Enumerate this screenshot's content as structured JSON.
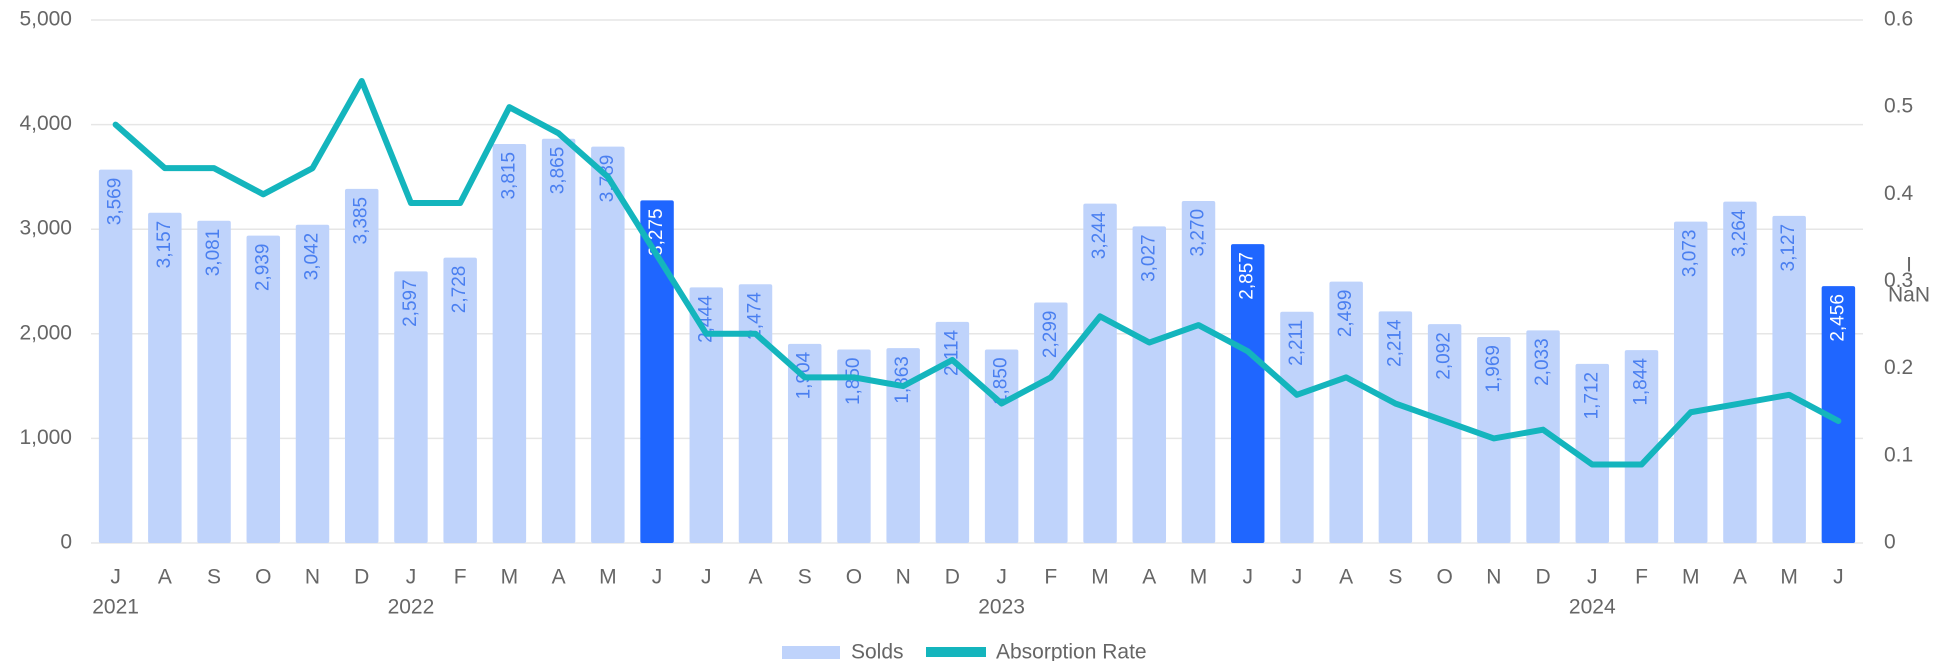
{
  "chart_data": {
    "type": "bar_line",
    "categories": [
      "J",
      "A",
      "S",
      "O",
      "N",
      "D",
      "J",
      "F",
      "M",
      "A",
      "M",
      "J",
      "J",
      "A",
      "S",
      "O",
      "N",
      "D",
      "J",
      "F",
      "M",
      "A",
      "M",
      "J",
      "J",
      "A",
      "S",
      "O",
      "N",
      "D",
      "J",
      "F",
      "M",
      "A",
      "M",
      "J"
    ],
    "years": [
      "2021",
      null,
      null,
      null,
      null,
      null,
      "2022",
      null,
      null,
      null,
      null,
      null,
      null,
      null,
      null,
      null,
      null,
      null,
      "2023",
      null,
      null,
      null,
      null,
      null,
      null,
      null,
      null,
      null,
      null,
      null,
      "2024",
      null,
      null,
      null,
      null,
      null
    ],
    "series": [
      {
        "name": "Solds",
        "type": "bar",
        "color": "#bfd3fb",
        "colors": [
          "#bfd3fb",
          "#bfd3fb",
          "#bfd3fb",
          "#bfd3fb",
          "#bfd3fb",
          "#bfd3fb",
          "#bfd3fb",
          "#bfd3fb",
          "#bfd3fb",
          "#bfd3fb",
          "#bfd3fb",
          "#1f66ff",
          "#bfd3fb",
          "#bfd3fb",
          "#bfd3fb",
          "#bfd3fb",
          "#bfd3fb",
          "#bfd3fb",
          "#bfd3fb",
          "#bfd3fb",
          "#bfd3fb",
          "#bfd3fb",
          "#bfd3fb",
          "#1f66ff",
          "#bfd3fb",
          "#bfd3fb",
          "#bfd3fb",
          "#bfd3fb",
          "#bfd3fb",
          "#bfd3fb",
          "#bfd3fb",
          "#bfd3fb",
          "#bfd3fb",
          "#bfd3fb",
          "#bfd3fb",
          "#1f66ff"
        ],
        "values": [
          3569,
          3157,
          3081,
          2939,
          3042,
          3385,
          2597,
          2728,
          3815,
          3865,
          3789,
          3275,
          2444,
          2474,
          1904,
          1850,
          1863,
          2114,
          1850,
          2299,
          3244,
          3027,
          3270,
          2857,
          2211,
          2499,
          2214,
          2092,
          1969,
          2033,
          1712,
          1844,
          3073,
          3264,
          3127,
          2456
        ],
        "value_labels": [
          "3,569",
          "3,157",
          "3,081",
          "2,939",
          "3,042",
          "3,385",
          "2,597",
          "2,728",
          "3,815",
          "3,865",
          "3,789",
          "3,275",
          "2,444",
          "2,474",
          "1,904",
          "1,850",
          "1,863",
          "2,114",
          "1,850",
          "2,299",
          "3,244",
          "3,027",
          "3,270",
          "2,857",
          "2,211",
          "2,499",
          "2,214",
          "2,092",
          "1,969",
          "2,033",
          "1,712",
          "1,844",
          "3,073",
          "3,264",
          "3,127",
          "2,456"
        ]
      },
      {
        "name": "Absorption Rate",
        "type": "line",
        "axis": "y2",
        "color": "#14b5bd",
        "values": [
          0.48,
          0.43,
          0.43,
          0.4,
          0.43,
          0.53,
          0.39,
          0.39,
          0.5,
          0.47,
          0.42,
          0.33,
          0.24,
          0.24,
          0.19,
          0.19,
          0.18,
          0.21,
          0.16,
          0.19,
          0.26,
          0.23,
          0.25,
          0.22,
          0.17,
          0.19,
          0.16,
          0.14,
          0.12,
          0.13,
          0.09,
          0.09,
          0.15,
          0.16,
          0.17,
          0.14
        ]
      }
    ],
    "ylim": [
      0,
      5000
    ],
    "yticks": [
      0,
      {
        "value": 1000,
        "label": "1,000"
      },
      {
        "value": 2000,
        "label": "2,000"
      },
      {
        "value": 3000,
        "label": "3,000"
      },
      {
        "value": 4000,
        "label": "4,000"
      },
      {
        "value": 5000,
        "label": "5,000"
      }
    ],
    "y2lim": [
      0,
      0.6
    ],
    "y2ticks": [
      0,
      0.1,
      0.2,
      0.3,
      0.4,
      0.5,
      0.6
    ],
    "y2_label": [
      "I",
      "NaN"
    ],
    "grid": true,
    "legend": "bottom"
  }
}
